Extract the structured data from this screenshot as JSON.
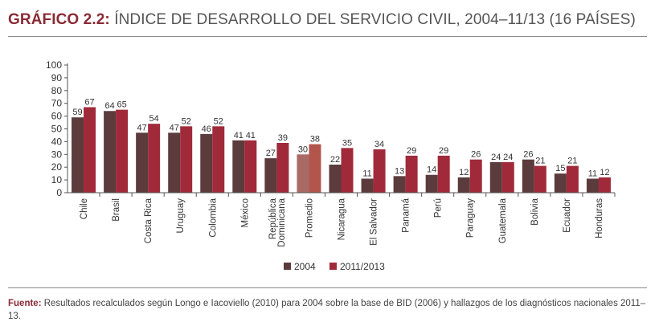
{
  "title_prefix": "GRÁFICO 2.2:",
  "title_text": " ÍNDICE DE DESARROLLO DEL SERVICIO CIVIL, 2004–11/13 (16 PAÍSES)",
  "source_label": "Fuente:",
  "source_text": " Resultados recalculados según Longo e Iacoviello (2010) para 2004 sobre la base de BID (2006) y hallazgos de los diagnósticos nacionales 2011–13.",
  "colors": {
    "s2004": "#5c3b3d",
    "s2011": "#a12a3a",
    "avg2004": "#a96a66",
    "avg2011": "#b2564c",
    "title": "#8b2a35"
  },
  "chart_data": {
    "type": "bar",
    "title": "",
    "xlabel": "",
    "ylabel": "",
    "ylim": [
      0,
      100
    ],
    "yticks": [
      0,
      10,
      20,
      30,
      40,
      50,
      60,
      70,
      80,
      90,
      100
    ],
    "grid": false,
    "legend_position": "bottom",
    "categories": [
      "Chile",
      "Brasil",
      "Costa Rica",
      "Uruguay",
      "Colombia",
      "México",
      "República Dominicana",
      "Promedio",
      "Nicaragua",
      "El Salvador",
      "Panamá",
      "Perú",
      "Paraguay",
      "Guatemala",
      "Bolivia",
      "Ecuador",
      "Honduras"
    ],
    "series": [
      {
        "name": "2004",
        "values": [
          59,
          64,
          47,
          47,
          46,
          41,
          27,
          30,
          22,
          11,
          13,
          14,
          12,
          24,
          26,
          15,
          11
        ]
      },
      {
        "name": "2011/2013",
        "values": [
          67,
          65,
          54,
          52,
          52,
          41,
          39,
          38,
          35,
          34,
          29,
          29,
          26,
          24,
          21,
          21,
          12
        ]
      }
    ],
    "highlight_category": "Promedio"
  }
}
